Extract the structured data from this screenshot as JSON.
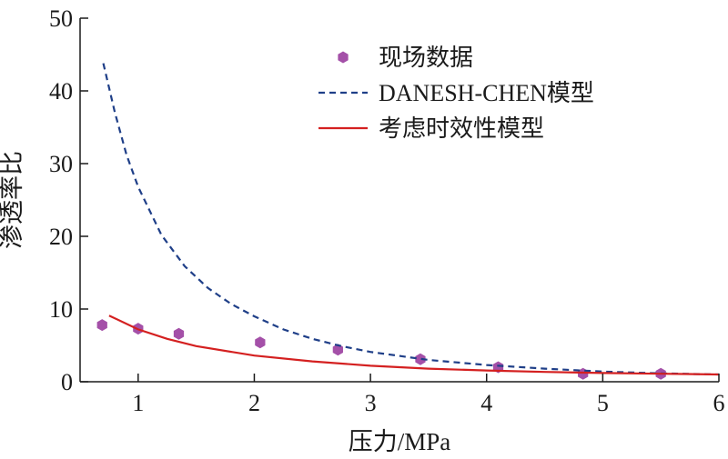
{
  "chart_data": {
    "type": "scatter",
    "title": "",
    "xlabel": "压力/MPa",
    "ylabel": "渗透率比",
    "xlim": [
      0.5,
      6
    ],
    "ylim": [
      0,
      50
    ],
    "xticks": [
      1,
      2,
      3,
      4,
      5,
      6
    ],
    "yticks": [
      0,
      10,
      20,
      30,
      40,
      50
    ],
    "grid": false,
    "legend_position": "top-right",
    "series": [
      {
        "name": "现场数据",
        "kind": "scatter",
        "marker": "hexagon",
        "color": "#a450a8",
        "x": [
          0.69,
          1.0,
          1.35,
          2.05,
          2.72,
          3.43,
          4.1,
          4.83,
          5.5
        ],
        "y": [
          7.8,
          7.3,
          6.6,
          5.4,
          4.4,
          3.1,
          2.0,
          1.1,
          1.1
        ]
      },
      {
        "name": "DANESH-CHEN模型",
        "kind": "line",
        "style": "dashed",
        "color": "#1f3f88",
        "x": [
          0.7,
          0.8,
          0.9,
          1.0,
          1.2,
          1.4,
          1.6,
          1.8,
          2.0,
          2.25,
          2.5,
          2.75,
          3.0,
          3.5,
          4.0,
          4.5,
          5.0,
          5.5,
          6.0
        ],
        "y": [
          43.8,
          37.0,
          31.2,
          26.8,
          20.2,
          15.9,
          12.9,
          10.7,
          9.0,
          7.2,
          5.9,
          4.9,
          4.1,
          3.0,
          2.3,
          1.8,
          1.4,
          1.15,
          1.0
        ]
      },
      {
        "name": "考虑时效性模型",
        "kind": "line",
        "style": "solid",
        "color": "#d42020",
        "x": [
          0.75,
          1.0,
          1.25,
          1.5,
          2.0,
          2.5,
          3.0,
          3.5,
          4.0,
          4.5,
          5.0,
          5.5,
          6.0
        ],
        "y": [
          9.1,
          7.2,
          5.9,
          4.9,
          3.6,
          2.8,
          2.2,
          1.8,
          1.55,
          1.35,
          1.2,
          1.1,
          1.0
        ]
      }
    ]
  }
}
